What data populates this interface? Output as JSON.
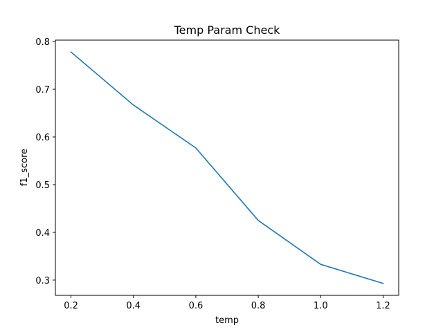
{
  "chart_data": {
    "type": "line",
    "title": "Temp Param Check",
    "xlabel": "temp",
    "ylabel": "f1_score",
    "x": [
      0.2,
      0.4,
      0.6,
      0.8,
      1.0,
      1.2
    ],
    "series": [
      {
        "values": [
          0.778,
          0.667,
          0.577,
          0.425,
          0.333,
          0.293
        ]
      }
    ],
    "xlim": [
      0.15,
      1.25
    ],
    "ylim": [
      0.268,
      0.803
    ],
    "xticks": [
      "0.2",
      "0.4",
      "0.6",
      "0.8",
      "1.0",
      "1.2"
    ],
    "yticks": [
      "0.3",
      "0.4",
      "0.5",
      "0.6",
      "0.7",
      "0.8"
    ],
    "grid": false,
    "line_color": "#1f77b4"
  }
}
